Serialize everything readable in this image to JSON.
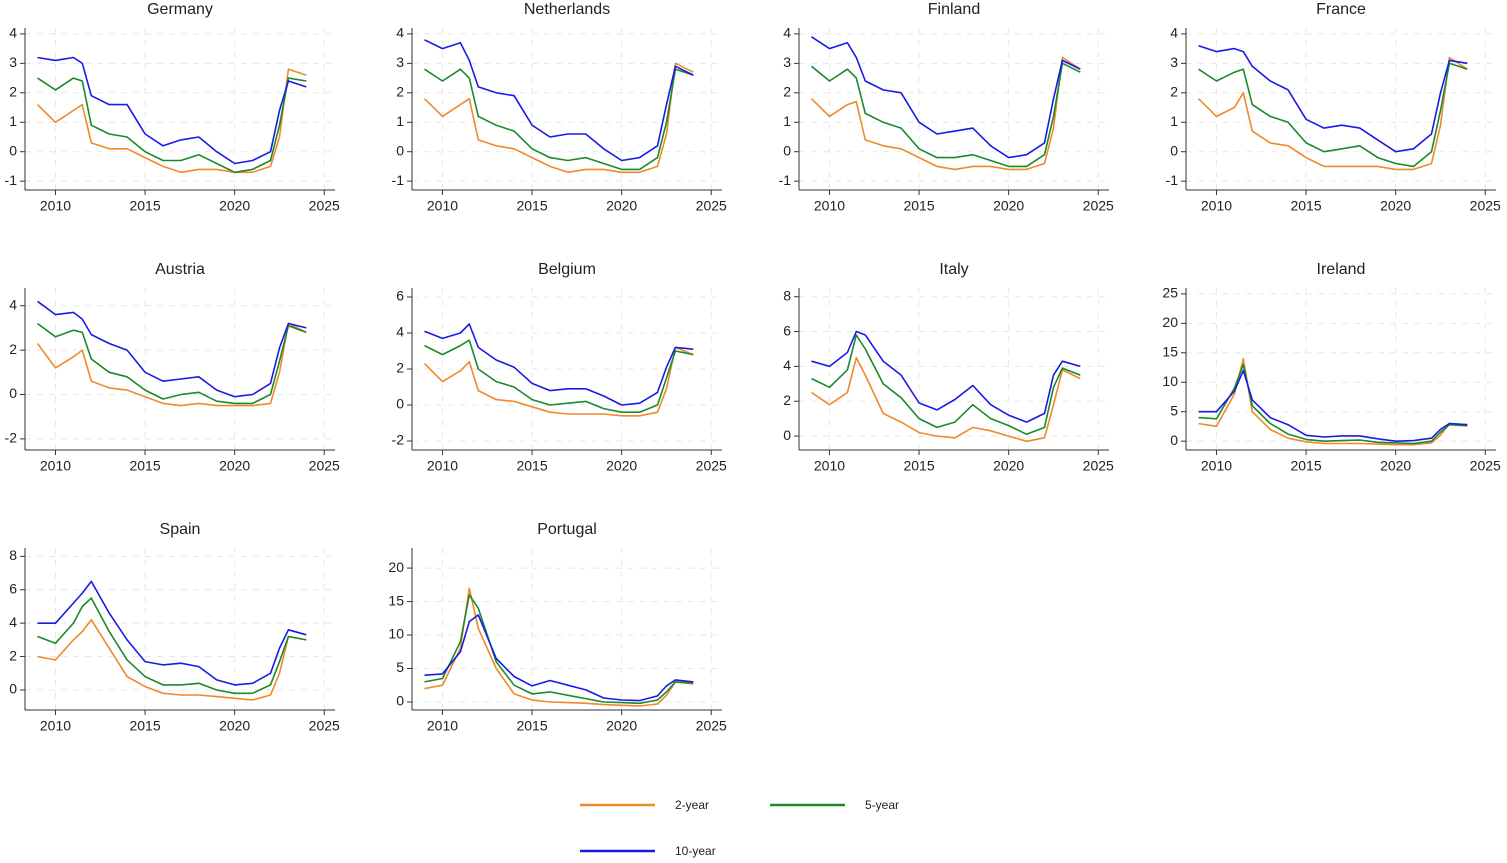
{
  "chart_data": [
    {
      "type": "line",
      "title": "Germany",
      "x": [
        2009,
        2010,
        2011,
        2011.5,
        2012,
        2013,
        2014,
        2015,
        2016,
        2017,
        2018,
        2019,
        2020,
        2021,
        2022,
        2022.5,
        2023,
        2024
      ],
      "xlim": [
        2008.3,
        2025.6
      ],
      "xticks": [
        2010,
        2015,
        2020,
        2025
      ],
      "ylim": [
        -1.3,
        4.2
      ],
      "yticks": [
        -1,
        0,
        1,
        2,
        3,
        4
      ],
      "grid": true,
      "series": [
        {
          "name": "2-year",
          "color": "#f0892b",
          "values": [
            1.6,
            1.0,
            1.4,
            1.6,
            0.3,
            0.1,
            0.1,
            -0.2,
            -0.5,
            -0.7,
            -0.6,
            -0.6,
            -0.7,
            -0.7,
            -0.5,
            0.5,
            2.8,
            2.6
          ]
        },
        {
          "name": "5-year",
          "color": "#1a8a2a",
          "values": [
            2.5,
            2.1,
            2.5,
            2.4,
            0.9,
            0.6,
            0.5,
            0.0,
            -0.3,
            -0.3,
            -0.1,
            -0.4,
            -0.7,
            -0.6,
            -0.3,
            0.9,
            2.5,
            2.4
          ]
        },
        {
          "name": "10-year",
          "color": "#1a1ae6",
          "values": [
            3.2,
            3.1,
            3.2,
            3.0,
            1.9,
            1.6,
            1.6,
            0.6,
            0.2,
            0.4,
            0.5,
            0.0,
            -0.4,
            -0.3,
            0.0,
            1.4,
            2.4,
            2.2
          ]
        }
      ]
    },
    {
      "type": "line",
      "title": "Netherlands",
      "x": [
        2009,
        2010,
        2011,
        2011.5,
        2012,
        2013,
        2014,
        2015,
        2016,
        2017,
        2018,
        2019,
        2020,
        2021,
        2022,
        2022.5,
        2023,
        2024
      ],
      "xlim": [
        2008.3,
        2025.6
      ],
      "xticks": [
        2010,
        2015,
        2020,
        2025
      ],
      "ylim": [
        -1.3,
        4.2
      ],
      "yticks": [
        -1,
        0,
        1,
        2,
        3,
        4
      ],
      "grid": true,
      "series": [
        {
          "name": "2-year",
          "color": "#f0892b",
          "values": [
            1.8,
            1.2,
            1.6,
            1.8,
            0.4,
            0.2,
            0.1,
            -0.2,
            -0.5,
            -0.7,
            -0.6,
            -0.6,
            -0.7,
            -0.7,
            -0.5,
            0.6,
            3.0,
            2.7
          ]
        },
        {
          "name": "5-year",
          "color": "#1a8a2a",
          "values": [
            2.8,
            2.4,
            2.8,
            2.5,
            1.2,
            0.9,
            0.7,
            0.1,
            -0.2,
            -0.3,
            -0.2,
            -0.4,
            -0.6,
            -0.6,
            -0.2,
            1.0,
            2.8,
            2.6
          ]
        },
        {
          "name": "10-year",
          "color": "#1a1ae6",
          "values": [
            3.8,
            3.5,
            3.7,
            3.1,
            2.2,
            2.0,
            1.9,
            0.9,
            0.5,
            0.6,
            0.6,
            0.1,
            -0.3,
            -0.2,
            0.2,
            1.6,
            2.9,
            2.6
          ]
        }
      ]
    },
    {
      "type": "line",
      "title": "Finland",
      "x": [
        2009,
        2010,
        2011,
        2011.5,
        2012,
        2013,
        2014,
        2015,
        2016,
        2017,
        2018,
        2019,
        2020,
        2021,
        2022,
        2022.5,
        2023,
        2024
      ],
      "xlim": [
        2008.3,
        2025.6
      ],
      "xticks": [
        2010,
        2015,
        2020,
        2025
      ],
      "ylim": [
        -1.3,
        4.2
      ],
      "yticks": [
        -1,
        0,
        1,
        2,
        3,
        4
      ],
      "grid": true,
      "series": [
        {
          "name": "2-year",
          "color": "#f0892b",
          "values": [
            1.8,
            1.2,
            1.6,
            1.7,
            0.4,
            0.2,
            0.1,
            -0.2,
            -0.5,
            -0.6,
            -0.5,
            -0.5,
            -0.6,
            -0.6,
            -0.4,
            0.8,
            3.2,
            2.8
          ]
        },
        {
          "name": "5-year",
          "color": "#1a8a2a",
          "values": [
            2.9,
            2.4,
            2.8,
            2.5,
            1.3,
            1.0,
            0.8,
            0.1,
            -0.2,
            -0.2,
            -0.1,
            -0.3,
            -0.5,
            -0.5,
            -0.1,
            1.2,
            3.0,
            2.7
          ]
        },
        {
          "name": "10-year",
          "color": "#1a1ae6",
          "values": [
            3.9,
            3.5,
            3.7,
            3.2,
            2.4,
            2.1,
            2.0,
            1.0,
            0.6,
            0.7,
            0.8,
            0.2,
            -0.2,
            -0.1,
            0.3,
            1.8,
            3.1,
            2.8
          ]
        }
      ]
    },
    {
      "type": "line",
      "title": "France",
      "x": [
        2009,
        2010,
        2011,
        2011.5,
        2012,
        2013,
        2014,
        2015,
        2016,
        2017,
        2018,
        2019,
        2020,
        2021,
        2022,
        2022.5,
        2023,
        2024
      ],
      "xlim": [
        2008.3,
        2025.6
      ],
      "xticks": [
        2010,
        2015,
        2020,
        2025
      ],
      "ylim": [
        -1.3,
        4.2
      ],
      "yticks": [
        -1,
        0,
        1,
        2,
        3,
        4
      ],
      "grid": true,
      "series": [
        {
          "name": "2-year",
          "color": "#f0892b",
          "values": [
            1.8,
            1.2,
            1.5,
            2.0,
            0.7,
            0.3,
            0.2,
            -0.2,
            -0.5,
            -0.5,
            -0.5,
            -0.5,
            -0.6,
            -0.6,
            -0.4,
            0.9,
            3.2,
            2.8
          ]
        },
        {
          "name": "5-year",
          "color": "#1a8a2a",
          "values": [
            2.8,
            2.4,
            2.7,
            2.8,
            1.6,
            1.2,
            1.0,
            0.3,
            0.0,
            0.1,
            0.2,
            -0.2,
            -0.4,
            -0.5,
            0.0,
            1.4,
            3.0,
            2.8
          ]
        },
        {
          "name": "10-year",
          "color": "#1a1ae6",
          "values": [
            3.6,
            3.4,
            3.5,
            3.4,
            2.9,
            2.4,
            2.1,
            1.1,
            0.8,
            0.9,
            0.8,
            0.4,
            0.0,
            0.1,
            0.6,
            2.0,
            3.1,
            3.0
          ]
        }
      ]
    },
    {
      "type": "line",
      "title": "Austria",
      "x": [
        2009,
        2010,
        2011,
        2011.5,
        2012,
        2013,
        2014,
        2015,
        2016,
        2017,
        2018,
        2019,
        2020,
        2021,
        2022,
        2022.5,
        2023,
        2024
      ],
      "xlim": [
        2008.3,
        2025.6
      ],
      "xticks": [
        2010,
        2015,
        2020,
        2025
      ],
      "ylim": [
        -2.5,
        4.8
      ],
      "yticks": [
        -2,
        0,
        2,
        4
      ],
      "grid": true,
      "series": [
        {
          "name": "2-year",
          "color": "#f0892b",
          "values": [
            2.3,
            1.2,
            1.7,
            2.0,
            0.6,
            0.3,
            0.2,
            -0.1,
            -0.4,
            -0.5,
            -0.4,
            -0.5,
            -0.5,
            -0.5,
            -0.4,
            1.0,
            3.2,
            2.8
          ]
        },
        {
          "name": "5-year",
          "color": "#1a8a2a",
          "values": [
            3.2,
            2.6,
            2.9,
            2.8,
            1.6,
            1.0,
            0.8,
            0.2,
            -0.2,
            0.0,
            0.1,
            -0.3,
            -0.4,
            -0.4,
            0.0,
            1.5,
            3.1,
            2.8
          ]
        },
        {
          "name": "10-year",
          "color": "#1a1ae6",
          "values": [
            4.2,
            3.6,
            3.7,
            3.4,
            2.7,
            2.3,
            2.0,
            1.0,
            0.6,
            0.7,
            0.8,
            0.2,
            -0.1,
            0.0,
            0.5,
            2.1,
            3.2,
            3.0
          ]
        }
      ]
    },
    {
      "type": "line",
      "title": "Belgium",
      "x": [
        2009,
        2010,
        2011,
        2011.5,
        2012,
        2013,
        2014,
        2015,
        2016,
        2017,
        2018,
        2019,
        2020,
        2021,
        2022,
        2022.5,
        2023,
        2024
      ],
      "xlim": [
        2008.3,
        2025.6
      ],
      "xticks": [
        2010,
        2015,
        2020,
        2025
      ],
      "ylim": [
        -2.5,
        6.5
      ],
      "yticks": [
        -2,
        0,
        2,
        4,
        6
      ],
      "grid": true,
      "series": [
        {
          "name": "2-year",
          "color": "#f0892b",
          "values": [
            2.3,
            1.3,
            1.9,
            2.4,
            0.8,
            0.3,
            0.2,
            -0.1,
            -0.4,
            -0.5,
            -0.5,
            -0.5,
            -0.6,
            -0.6,
            -0.4,
            0.9,
            3.2,
            2.8
          ]
        },
        {
          "name": "5-year",
          "color": "#1a8a2a",
          "values": [
            3.3,
            2.8,
            3.3,
            3.6,
            2.0,
            1.3,
            1.0,
            0.3,
            0.0,
            0.1,
            0.2,
            -0.2,
            -0.4,
            -0.4,
            0.0,
            1.5,
            3.0,
            2.8
          ]
        },
        {
          "name": "10-year",
          "color": "#1a1ae6",
          "values": [
            4.1,
            3.7,
            4.0,
            4.5,
            3.2,
            2.5,
            2.1,
            1.2,
            0.8,
            0.9,
            0.9,
            0.5,
            0.0,
            0.1,
            0.7,
            2.1,
            3.2,
            3.1
          ]
        }
      ]
    },
    {
      "type": "line",
      "title": "Italy",
      "x": [
        2009,
        2010,
        2011,
        2011.5,
        2012,
        2013,
        2014,
        2015,
        2016,
        2017,
        2018,
        2019,
        2020,
        2021,
        2022,
        2022.5,
        2023,
        2024
      ],
      "xlim": [
        2008.3,
        2025.6
      ],
      "xticks": [
        2010,
        2015,
        2020,
        2025
      ],
      "ylim": [
        -0.8,
        8.5
      ],
      "yticks": [
        0,
        2,
        4,
        6,
        8
      ],
      "grid": true,
      "series": [
        {
          "name": "2-year",
          "color": "#f0892b",
          "values": [
            2.5,
            1.8,
            2.5,
            4.5,
            3.5,
            1.3,
            0.8,
            0.2,
            0.0,
            -0.1,
            0.5,
            0.3,
            0.0,
            -0.3,
            -0.1,
            1.8,
            3.8,
            3.3
          ]
        },
        {
          "name": "5-year",
          "color": "#1a8a2a",
          "values": [
            3.3,
            2.8,
            3.8,
            5.8,
            5.0,
            3.0,
            2.2,
            1.0,
            0.5,
            0.8,
            1.8,
            1.0,
            0.6,
            0.1,
            0.5,
            2.8,
            3.9,
            3.5
          ]
        },
        {
          "name": "10-year",
          "color": "#1a1ae6",
          "values": [
            4.3,
            4.0,
            4.8,
            6.0,
            5.8,
            4.3,
            3.5,
            1.9,
            1.5,
            2.1,
            2.9,
            1.8,
            1.2,
            0.8,
            1.3,
            3.5,
            4.3,
            4.0
          ]
        }
      ]
    },
    {
      "type": "line",
      "title": "Ireland",
      "x": [
        2009,
        2010,
        2011,
        2011.5,
        2012,
        2013,
        2014,
        2015,
        2016,
        2017,
        2018,
        2019,
        2020,
        2021,
        2022,
        2022.5,
        2023,
        2024
      ],
      "xlim": [
        2008.3,
        2025.6
      ],
      "xticks": [
        2010,
        2015,
        2020,
        2025
      ],
      "ylim": [
        -1.5,
        26
      ],
      "yticks": [
        0,
        5,
        10,
        15,
        20,
        25
      ],
      "grid": true,
      "series": [
        {
          "name": "2-year",
          "color": "#f0892b",
          "values": [
            3.0,
            2.5,
            8.0,
            14.0,
            5.0,
            2.0,
            0.5,
            -0.1,
            -0.4,
            -0.4,
            -0.4,
            -0.5,
            -0.6,
            -0.6,
            -0.3,
            1.0,
            3.0,
            2.8
          ]
        },
        {
          "name": "5-year",
          "color": "#1a8a2a",
          "values": [
            4.0,
            3.8,
            9.0,
            13.0,
            6.0,
            3.0,
            1.2,
            0.3,
            0.0,
            0.1,
            0.2,
            -0.2,
            -0.3,
            -0.4,
            0.0,
            1.5,
            2.8,
            2.6
          ]
        },
        {
          "name": "10-year",
          "color": "#1a1ae6",
          "values": [
            5.0,
            5.0,
            8.5,
            12.0,
            7.0,
            4.0,
            2.8,
            1.0,
            0.7,
            0.9,
            0.9,
            0.4,
            0.0,
            0.1,
            0.5,
            2.0,
            3.0,
            2.8
          ]
        }
      ]
    },
    {
      "type": "line",
      "title": "Spain",
      "x": [
        2009,
        2010,
        2011,
        2011.5,
        2012,
        2013,
        2014,
        2015,
        2016,
        2017,
        2018,
        2019,
        2020,
        2021,
        2022,
        2022.5,
        2023,
        2024
      ],
      "xlim": [
        2008.3,
        2025.6
      ],
      "xticks": [
        2010,
        2015,
        2020,
        2025
      ],
      "ylim": [
        -1.2,
        8.5
      ],
      "yticks": [
        0,
        2,
        4,
        6,
        8
      ],
      "grid": true,
      "series": [
        {
          "name": "2-year",
          "color": "#f0892b",
          "values": [
            2.0,
            1.8,
            3.0,
            3.5,
            4.2,
            2.5,
            0.8,
            0.2,
            -0.2,
            -0.3,
            -0.3,
            -0.4,
            -0.5,
            -0.6,
            -0.3,
            1.0,
            3.2,
            3.0
          ]
        },
        {
          "name": "5-year",
          "color": "#1a8a2a",
          "values": [
            3.2,
            2.8,
            4.0,
            5.0,
            5.5,
            3.5,
            1.8,
            0.8,
            0.3,
            0.3,
            0.4,
            0.0,
            -0.2,
            -0.2,
            0.3,
            1.7,
            3.2,
            3.0
          ]
        },
        {
          "name": "10-year",
          "color": "#1a1ae6",
          "values": [
            4.0,
            4.0,
            5.2,
            5.8,
            6.5,
            4.6,
            3.0,
            1.7,
            1.5,
            1.6,
            1.4,
            0.6,
            0.3,
            0.4,
            1.0,
            2.5,
            3.6,
            3.3
          ]
        }
      ]
    },
    {
      "type": "line",
      "title": "Portugal",
      "x": [
        2009,
        2010,
        2011,
        2011.5,
        2012,
        2013,
        2014,
        2015,
        2016,
        2017,
        2018,
        2019,
        2020,
        2021,
        2022,
        2022.5,
        2023,
        2024
      ],
      "xlim": [
        2008.3,
        2025.6
      ],
      "xticks": [
        2010,
        2015,
        2020,
        2025
      ],
      "ylim": [
        -1.2,
        23
      ],
      "yticks": [
        0,
        5,
        10,
        15,
        20
      ],
      "grid": true,
      "series": [
        {
          "name": "2-year",
          "color": "#f0892b",
          "values": [
            2.0,
            2.5,
            8.0,
            17.0,
            11.0,
            5.0,
            1.2,
            0.3,
            0.0,
            -0.1,
            -0.2,
            -0.4,
            -0.5,
            -0.6,
            -0.3,
            1.0,
            3.0,
            2.7
          ]
        },
        {
          "name": "5-year",
          "color": "#1a8a2a",
          "values": [
            3.0,
            3.5,
            9.0,
            16.0,
            14.0,
            6.0,
            2.5,
            1.2,
            1.5,
            1.0,
            0.5,
            0.0,
            -0.1,
            -0.2,
            0.3,
            1.5,
            3.0,
            2.8
          ]
        },
        {
          "name": "10-year",
          "color": "#1a1ae6",
          "values": [
            4.0,
            4.2,
            7.5,
            12.0,
            13.0,
            6.5,
            3.8,
            2.4,
            3.2,
            2.5,
            1.8,
            0.6,
            0.3,
            0.2,
            0.9,
            2.4,
            3.3,
            3.0
          ]
        }
      ]
    }
  ]
}
